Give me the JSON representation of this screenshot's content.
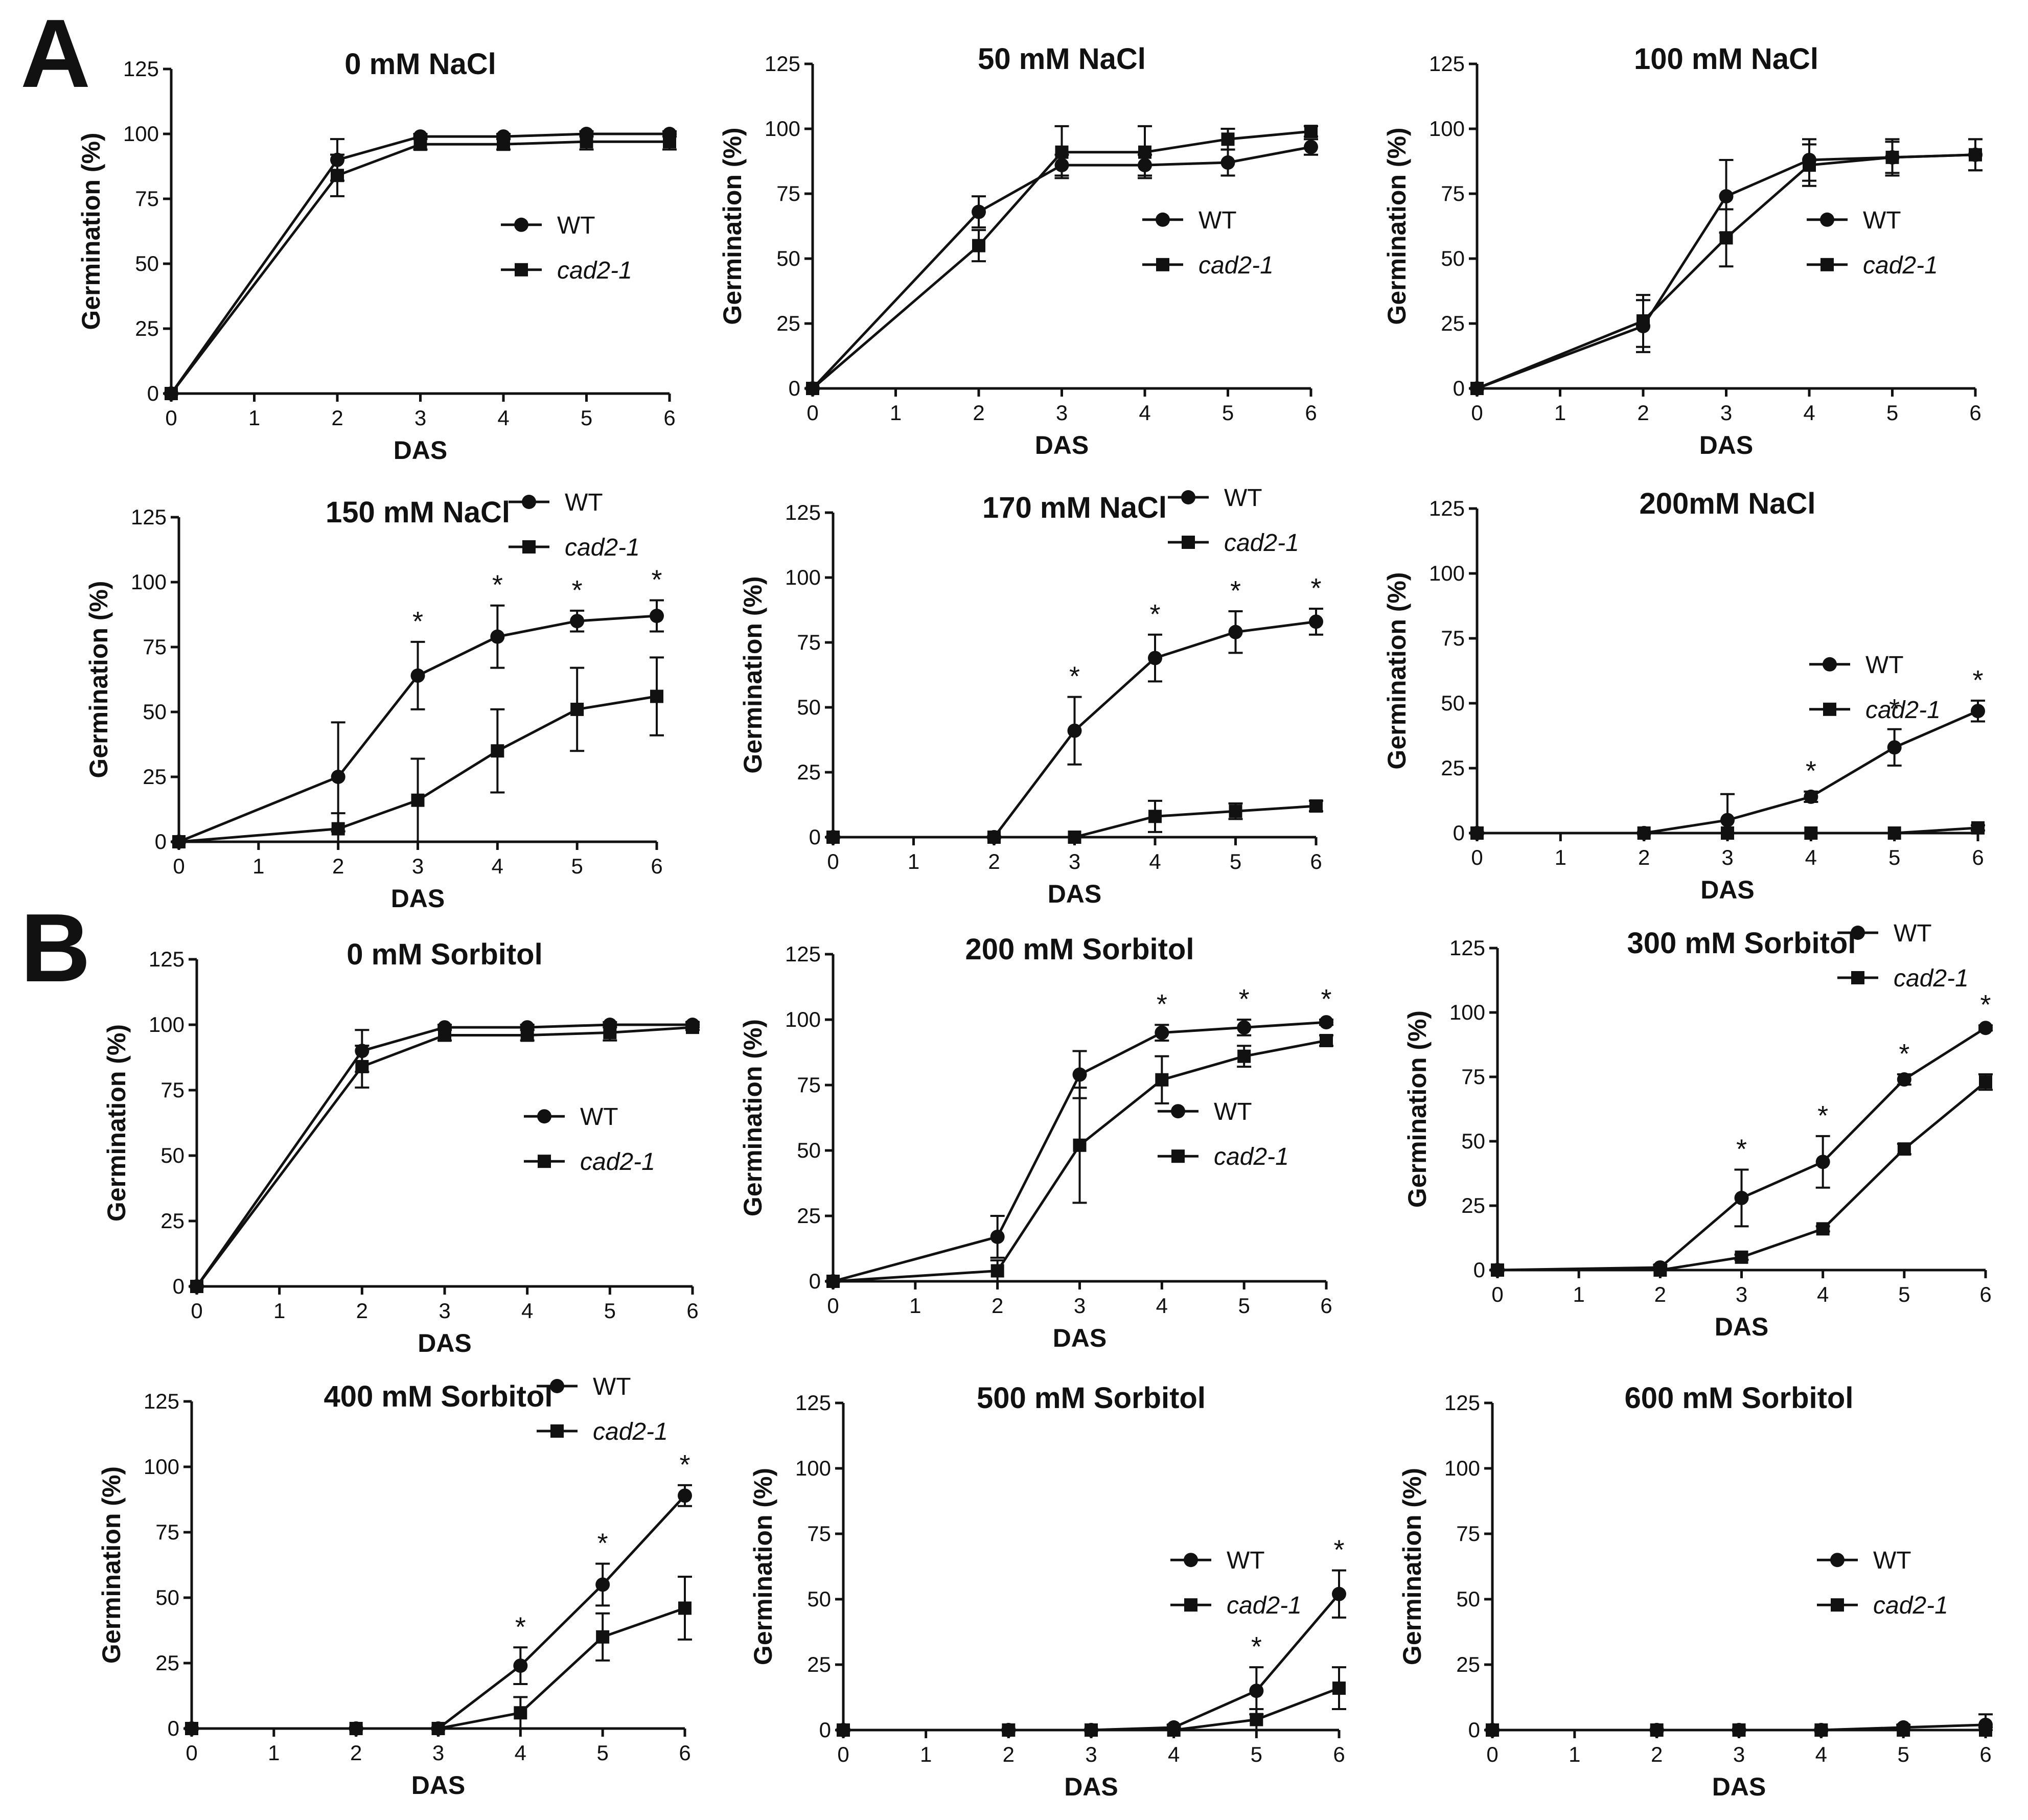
{
  "panel_letters": [
    "A",
    "B"
  ],
  "series_names": [
    "WT",
    "cad2-1"
  ],
  "chart_data": [
    {
      "type": "line",
      "title": "0 mM NaCl",
      "xlabel": "DAS",
      "ylabel": "Germination (%)",
      "x": [
        0,
        2,
        3,
        4,
        5,
        6
      ],
      "xticks": [
        0,
        1,
        2,
        3,
        4,
        5,
        6
      ],
      "yticks": [
        0,
        25,
        50,
        75,
        100,
        125
      ],
      "xlim": [
        0,
        6
      ],
      "ylim": [
        0,
        125
      ],
      "series": [
        {
          "name": "WT",
          "marker": "circle",
          "values": [
            0,
            90,
            99,
            99,
            100,
            100
          ],
          "errors": [
            0,
            8,
            1,
            1,
            1,
            1
          ]
        },
        {
          "name": "cad2-1",
          "marker": "square",
          "values": [
            0,
            84,
            96,
            96,
            97,
            97
          ],
          "errors": [
            0,
            8,
            2,
            2,
            3,
            3
          ]
        }
      ],
      "annotations": [],
      "legend": "right"
    },
    {
      "type": "line",
      "title": "50 mM NaCl",
      "xlabel": "DAS",
      "ylabel": "Germination (%)",
      "x": [
        0,
        2,
        3,
        4,
        5,
        6
      ],
      "xticks": [
        0,
        1,
        2,
        3,
        4,
        5,
        6
      ],
      "yticks": [
        0,
        25,
        50,
        75,
        100,
        125
      ],
      "xlim": [
        0,
        6
      ],
      "ylim": [
        0,
        125
      ],
      "series": [
        {
          "name": "WT",
          "marker": "circle",
          "values": [
            0,
            68,
            86,
            86,
            87,
            93
          ],
          "errors": [
            0,
            6,
            4,
            4,
            5,
            3
          ]
        },
        {
          "name": "cad2-1",
          "marker": "square",
          "values": [
            0,
            55,
            91,
            91,
            96,
            99
          ],
          "errors": [
            0,
            6,
            10,
            10,
            4,
            2
          ]
        }
      ],
      "annotations": [],
      "legend": "right"
    },
    {
      "type": "line",
      "title": "100 mM NaCl",
      "xlabel": "DAS",
      "ylabel": "Germination (%)",
      "x": [
        0,
        2,
        3,
        4,
        5,
        6
      ],
      "xticks": [
        0,
        1,
        2,
        3,
        4,
        5,
        6
      ],
      "yticks": [
        0,
        25,
        50,
        75,
        100,
        125
      ],
      "xlim": [
        0,
        6
      ],
      "ylim": [
        0,
        125
      ],
      "series": [
        {
          "name": "WT",
          "marker": "circle",
          "values": [
            0,
            24,
            74,
            88,
            89,
            90
          ],
          "errors": [
            0,
            10,
            14,
            8,
            7,
            6
          ]
        },
        {
          "name": "cad2-1",
          "marker": "square",
          "values": [
            0,
            26,
            58,
            86,
            89,
            90
          ],
          "errors": [
            0,
            10,
            11,
            8,
            6,
            6
          ]
        }
      ],
      "annotations": [],
      "legend": "right"
    },
    {
      "type": "line",
      "title": "150 mM NaCl",
      "xlabel": "DAS",
      "ylabel": "Germination (%)",
      "x": [
        0,
        2,
        3,
        4,
        5,
        6
      ],
      "xticks": [
        0,
        1,
        2,
        3,
        4,
        5,
        6
      ],
      "yticks": [
        0,
        25,
        50,
        75,
        100,
        125
      ],
      "xlim": [
        0,
        6
      ],
      "ylim": [
        0,
        125
      ],
      "series": [
        {
          "name": "WT",
          "marker": "circle",
          "values": [
            0,
            25,
            64,
            79,
            85,
            87
          ],
          "errors": [
            0,
            21,
            13,
            12,
            4,
            6
          ]
        },
        {
          "name": "cad2-1",
          "marker": "square",
          "values": [
            0,
            5,
            16,
            35,
            51,
            56
          ],
          "errors": [
            0,
            6,
            16,
            16,
            16,
            15
          ]
        }
      ],
      "annotations": [
        {
          "x": 3,
          "text": "*"
        },
        {
          "x": 4,
          "text": "*"
        },
        {
          "x": 5,
          "text": "*"
        },
        {
          "x": 6,
          "text": "*"
        }
      ],
      "legend": "top-right"
    },
    {
      "type": "line",
      "title": "170 mM NaCl",
      "xlabel": "DAS",
      "ylabel": "Germination (%)",
      "x": [
        0,
        2,
        3,
        4,
        5,
        6
      ],
      "xticks": [
        0,
        1,
        2,
        3,
        4,
        5,
        6
      ],
      "yticks": [
        0,
        25,
        50,
        75,
        100,
        125
      ],
      "xlim": [
        0,
        6
      ],
      "ylim": [
        0,
        125
      ],
      "series": [
        {
          "name": "WT",
          "marker": "circle",
          "values": [
            0,
            0,
            41,
            69,
            79,
            83
          ],
          "errors": [
            0,
            0,
            13,
            9,
            8,
            5
          ]
        },
        {
          "name": "cad2-1",
          "marker": "square",
          "values": [
            0,
            0,
            0,
            8,
            10,
            12
          ],
          "errors": [
            0,
            0,
            0,
            6,
            3,
            2
          ]
        }
      ],
      "annotations": [
        {
          "x": 3,
          "text": "*"
        },
        {
          "x": 4,
          "text": "*"
        },
        {
          "x": 5,
          "text": "*"
        },
        {
          "x": 6,
          "text": "*"
        }
      ],
      "legend": "top-right"
    },
    {
      "type": "line",
      "title": "200mM NaCl",
      "xlabel": "DAS",
      "ylabel": "Germination (%)",
      "x": [
        0,
        2,
        3,
        4,
        5,
        6
      ],
      "xticks": [
        0,
        1,
        2,
        3,
        4,
        5,
        6
      ],
      "yticks": [
        0,
        25,
        50,
        75,
        100,
        125
      ],
      "xlim": [
        0,
        6
      ],
      "ylim": [
        0,
        125
      ],
      "series": [
        {
          "name": "WT",
          "marker": "circle",
          "values": [
            0,
            0,
            5,
            14,
            33,
            47
          ],
          "errors": [
            0,
            0,
            10,
            2,
            7,
            4
          ]
        },
        {
          "name": "cad2-1",
          "marker": "square",
          "values": [
            0,
            0,
            0,
            0,
            0,
            2
          ],
          "errors": [
            0,
            0,
            0,
            0,
            0,
            1
          ]
        }
      ],
      "annotations": [
        {
          "x": 4,
          "text": "*"
        },
        {
          "x": 5,
          "text": "*"
        },
        {
          "x": 6,
          "text": "*"
        }
      ],
      "legend": "right"
    },
    {
      "type": "line",
      "title": "0 mM Sorbitol",
      "xlabel": "DAS",
      "ylabel": "Germination (%)",
      "x": [
        0,
        2,
        3,
        4,
        5,
        6
      ],
      "xticks": [
        0,
        1,
        2,
        3,
        4,
        5,
        6
      ],
      "yticks": [
        0,
        25,
        50,
        75,
        100,
        125
      ],
      "xlim": [
        0,
        6
      ],
      "ylim": [
        0,
        125
      ],
      "series": [
        {
          "name": "WT",
          "marker": "circle",
          "values": [
            0,
            90,
            99,
            99,
            100,
            100
          ],
          "errors": [
            0,
            8,
            1,
            1,
            1,
            1
          ]
        },
        {
          "name": "cad2-1",
          "marker": "square",
          "values": [
            0,
            84,
            96,
            96,
            97,
            99
          ],
          "errors": [
            0,
            8,
            2,
            2,
            3,
            1
          ]
        }
      ],
      "annotations": [],
      "legend": "right"
    },
    {
      "type": "line",
      "title": "200 mM Sorbitol",
      "xlabel": "DAS",
      "ylabel": "Germination (%)",
      "x": [
        0,
        2,
        3,
        4,
        5,
        6
      ],
      "xticks": [
        0,
        1,
        2,
        3,
        4,
        5,
        6
      ],
      "yticks": [
        0,
        25,
        50,
        75,
        100,
        125
      ],
      "xlim": [
        0,
        6
      ],
      "ylim": [
        0,
        125
      ],
      "series": [
        {
          "name": "WT",
          "marker": "circle",
          "values": [
            0,
            17,
            79,
            95,
            97,
            99
          ],
          "errors": [
            0,
            8,
            9,
            3,
            3,
            1
          ]
        },
        {
          "name": "cad2-1",
          "marker": "square",
          "values": [
            0,
            4,
            52,
            77,
            86,
            92
          ],
          "errors": [
            0,
            4,
            22,
            9,
            4,
            2
          ]
        }
      ],
      "annotations": [
        {
          "x": 4,
          "text": "*"
        },
        {
          "x": 5,
          "text": "*"
        },
        {
          "x": 6,
          "text": "*"
        }
      ],
      "legend": "right"
    },
    {
      "type": "line",
      "title": "300 mM Sorbitol",
      "xlabel": "DAS",
      "ylabel": "Germination (%)",
      "x": [
        0,
        2,
        3,
        4,
        5,
        6
      ],
      "xticks": [
        0,
        1,
        2,
        3,
        4,
        5,
        6
      ],
      "yticks": [
        0,
        25,
        50,
        75,
        100,
        125
      ],
      "xlim": [
        0,
        6
      ],
      "ylim": [
        0,
        125
      ],
      "series": [
        {
          "name": "WT",
          "marker": "circle",
          "values": [
            0,
            1,
            28,
            42,
            74,
            94
          ],
          "errors": [
            0,
            1,
            11,
            10,
            2,
            1
          ]
        },
        {
          "name": "cad2-1",
          "marker": "square",
          "values": [
            0,
            0,
            5,
            16,
            47,
            73
          ],
          "errors": [
            0,
            0,
            1,
            1,
            2,
            3
          ]
        }
      ],
      "annotations": [
        {
          "x": 3,
          "text": "*"
        },
        {
          "x": 4,
          "text": "*"
        },
        {
          "x": 5,
          "text": "*"
        },
        {
          "x": 6,
          "text": "*"
        }
      ],
      "legend": "top-right"
    },
    {
      "type": "line",
      "title": "400 mM Sorbitol",
      "xlabel": "DAS",
      "ylabel": "Germination (%)",
      "x": [
        0,
        2,
        3,
        4,
        5,
        6
      ],
      "xticks": [
        0,
        1,
        2,
        3,
        4,
        5,
        6
      ],
      "yticks": [
        0,
        25,
        50,
        75,
        100,
        125
      ],
      "xlim": [
        0,
        6
      ],
      "ylim": [
        0,
        125
      ],
      "series": [
        {
          "name": "WT",
          "marker": "circle",
          "values": [
            0,
            0,
            0,
            24,
            55,
            89
          ],
          "errors": [
            0,
            0,
            0,
            7,
            8,
            4
          ]
        },
        {
          "name": "cad2-1",
          "marker": "square",
          "values": [
            0,
            0,
            0,
            6,
            35,
            46
          ],
          "errors": [
            0,
            0,
            0,
            6,
            9,
            12
          ]
        }
      ],
      "annotations": [
        {
          "x": 4,
          "text": "*"
        },
        {
          "x": 5,
          "text": "*"
        },
        {
          "x": 6,
          "text": "*"
        }
      ],
      "legend": "top-right"
    },
    {
      "type": "line",
      "title": "500 mM Sorbitol",
      "xlabel": "DAS",
      "ylabel": "Germination (%)",
      "x": [
        0,
        2,
        3,
        4,
        5,
        6
      ],
      "xticks": [
        0,
        1,
        2,
        3,
        4,
        5,
        6
      ],
      "yticks": [
        0,
        25,
        50,
        75,
        100,
        125
      ],
      "xlim": [
        0,
        6
      ],
      "ylim": [
        0,
        125
      ],
      "series": [
        {
          "name": "WT",
          "marker": "circle",
          "values": [
            0,
            0,
            0,
            1,
            15,
            52
          ],
          "errors": [
            0,
            0,
            0,
            1,
            9,
            9
          ]
        },
        {
          "name": "cad2-1",
          "marker": "square",
          "values": [
            0,
            0,
            0,
            0,
            4,
            16
          ],
          "errors": [
            0,
            0,
            0,
            0,
            4,
            8
          ]
        }
      ],
      "annotations": [
        {
          "x": 5,
          "text": "*"
        },
        {
          "x": 6,
          "text": "*"
        }
      ],
      "legend": "right"
    },
    {
      "type": "line",
      "title": "600 mM Sorbitol",
      "xlabel": "DAS",
      "ylabel": "Germination (%)",
      "x": [
        0,
        2,
        3,
        4,
        5,
        6
      ],
      "xticks": [
        0,
        1,
        2,
        3,
        4,
        5,
        6
      ],
      "yticks": [
        0,
        25,
        50,
        75,
        100,
        125
      ],
      "xlim": [
        0,
        6
      ],
      "ylim": [
        0,
        125
      ],
      "series": [
        {
          "name": "WT",
          "marker": "circle",
          "values": [
            0,
            0,
            0,
            0,
            1,
            2
          ],
          "errors": [
            0,
            0,
            0,
            0,
            1,
            4
          ]
        },
        {
          "name": "cad2-1",
          "marker": "square",
          "values": [
            0,
            0,
            0,
            0,
            0,
            0
          ],
          "errors": [
            0,
            0,
            0,
            0,
            0,
            1
          ]
        }
      ],
      "annotations": [],
      "legend": "right"
    }
  ]
}
